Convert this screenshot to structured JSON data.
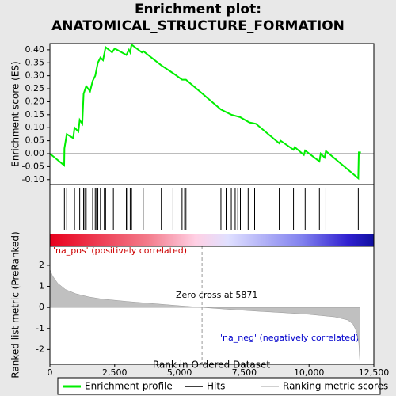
{
  "chart_data": [
    {
      "type": "line",
      "title": [
        "Enrichment plot:",
        "ANATOMICAL_STRUCTURE_FORMATION"
      ],
      "ylabel": "Enrichment score (ES)",
      "x": [
        0,
        550,
        560,
        650,
        900,
        950,
        1100,
        1150,
        1250,
        1300,
        1400,
        1550,
        1650,
        1750,
        1850,
        1950,
        2050,
        2150,
        2400,
        2500,
        2950,
        3050,
        3100,
        3150,
        3550,
        3600,
        4300,
        4750,
        5100,
        5250,
        6600,
        7000,
        7350,
        7700,
        7950,
        8850,
        8900,
        9400,
        9450,
        9800,
        9850,
        10400,
        10450,
        10600,
        10650,
        11900,
        11920,
        12000
      ],
      "series": [
        {
          "name": "Enrichment profile",
          "color": "#00ee00",
          "values": [
            0,
            -0.045,
            0.02,
            0.075,
            0.06,
            0.1,
            0.085,
            0.13,
            0.115,
            0.23,
            0.26,
            0.24,
            0.28,
            0.3,
            0.35,
            0.37,
            0.36,
            0.41,
            0.39,
            0.405,
            0.38,
            0.4,
            0.39,
            0.42,
            0.39,
            0.395,
            0.34,
            0.31,
            0.285,
            0.285,
            0.17,
            0.15,
            0.14,
            0.12,
            0.115,
            0.04,
            0.05,
            0.015,
            0.025,
            -0.005,
            0.012,
            -0.03,
            0,
            -0.015,
            0.01,
            -0.095,
            0.005,
            0.005
          ]
        }
      ],
      "xlim": [
        0,
        12500
      ],
      "ylim": [
        -0.119,
        0.424
      ],
      "yticks": [
        {
          "value": -0.1,
          "label": "-0.10"
        },
        {
          "value": -0.05,
          "label": "-0.05"
        },
        {
          "value": 0,
          "label": "0.00"
        },
        {
          "value": 0.05,
          "label": "0.05"
        },
        {
          "value": 0.1,
          "label": "0.10"
        },
        {
          "value": 0.15,
          "label": "0.15"
        },
        {
          "value": 0.2,
          "label": "0.20"
        },
        {
          "value": 0.25,
          "label": "0.25"
        },
        {
          "value": 0.3,
          "label": "0.30"
        },
        {
          "value": 0.35,
          "label": "0.35"
        },
        {
          "value": 0.4,
          "label": "0.40"
        }
      ]
    },
    {
      "type": "rug",
      "series": [
        {
          "name": "Hits",
          "color": "#000000",
          "values": [
            560,
            650,
            950,
            1150,
            1300,
            1350,
            1400,
            1650,
            1750,
            1800,
            1850,
            1950,
            2100,
            2150,
            2450,
            2950,
            3000,
            3100,
            3150,
            3600,
            4300,
            4750,
            5100,
            5200,
            5250,
            6600,
            6800,
            7000,
            7150,
            7250,
            7350,
            7650,
            7900,
            8850,
            9400,
            9850,
            10400,
            10650,
            11900
          ]
        }
      ],
      "xlim": [
        0,
        12500
      ]
    },
    {
      "type": "area",
      "ylabel": "Ranked list metric (PreRanked)",
      "xlabel": "Rank in Ordered Dataset",
      "x": [
        0,
        100,
        300,
        600,
        1000,
        1500,
        2000,
        3000,
        4000,
        5000,
        5871,
        7000,
        8000,
        9000,
        10000,
        11000,
        11500,
        11700,
        11850,
        11920,
        11960
      ],
      "series": [
        {
          "name": "Ranking metric scores",
          "color": "#c0c0c0",
          "values": [
            1.8,
            1.5,
            1.15,
            0.85,
            0.65,
            0.5,
            0.4,
            0.28,
            0.18,
            0.08,
            0,
            -0.1,
            -0.18,
            -0.25,
            -0.33,
            -0.45,
            -0.6,
            -0.8,
            -1.2,
            -1.7,
            -2.6
          ]
        }
      ],
      "zero_cross": 5871,
      "annotations": [
        "'na_pos' (positively correlated)",
        "Zero cross at 5871",
        "'na_neg' (negatively correlated)"
      ],
      "xlim": [
        0,
        12500
      ],
      "xticks": [
        0,
        {
          "value": 2500,
          "label": "2,500"
        },
        {
          "value": 5000,
          "label": "5,000"
        },
        {
          "value": 7500,
          "label": "7,500"
        },
        {
          "value": 10000,
          "label": "10,000"
        },
        {
          "value": 12500,
          "label": "12,500"
        }
      ],
      "ylim": [
        -2.7,
        2.9
      ],
      "yticks": [
        -2,
        -1,
        0,
        1,
        2
      ]
    }
  ]
}
